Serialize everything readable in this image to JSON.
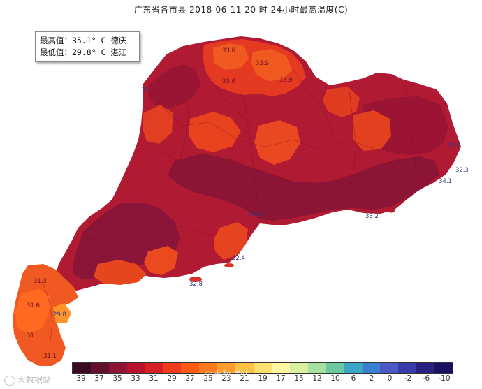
{
  "title": "广东省各市县 2018-06-11 20 时 24小时最高温度(C)",
  "info_box": {
    "max_line": "最高值：35.1° C 德庆",
    "min_line": "最低值：29.8° C 湛江"
  },
  "station_labels": [
    {
      "id": "s1",
      "text": "33.6"
    },
    {
      "id": "s2",
      "text": "33.9"
    },
    {
      "id": "s3",
      "text": "33.6"
    },
    {
      "id": "s4",
      "text": "33.9"
    },
    {
      "id": "s5",
      "text": "33"
    },
    {
      "id": "s6",
      "text": "33.6"
    },
    {
      "id": "s7",
      "text": "34.1"
    },
    {
      "id": "s8",
      "text": "32.3"
    },
    {
      "id": "s9",
      "text": "33.2"
    },
    {
      "id": "s10",
      "text": "32.4"
    },
    {
      "id": "s11",
      "text": "32.8"
    },
    {
      "id": "s12",
      "text": "31.3"
    },
    {
      "id": "s13",
      "text": "31.6"
    },
    {
      "id": "s14",
      "text": "29.8"
    },
    {
      "id": "s15",
      "text": "31"
    },
    {
      "id": "s16",
      "text": "31.1"
    },
    {
      "id": "s17",
      "text": "34.8"
    }
  ],
  "legend": {
    "colors": [
      "#3a0a22",
      "#62102e",
      "#8c1434",
      "#b8132e",
      "#d81f26",
      "#f03a1c",
      "#ff5a14",
      "#ff7a1e",
      "#ff9c2a",
      "#ffbf45",
      "#ffe070",
      "#fff7a0",
      "#d8f0a0",
      "#a8e0a0",
      "#6cc8a0",
      "#3aa8c0",
      "#3a80d0",
      "#4a58c8",
      "#3a3aa8",
      "#2a2080",
      "#1a1060"
    ],
    "labels": [
      "39",
      "37",
      "35",
      "33",
      "31",
      "29",
      "27",
      "25",
      "23",
      "21",
      "19",
      "17",
      "15",
      "12",
      "10",
      "6",
      "2",
      "0",
      "-2",
      "-6",
      "-10"
    ]
  },
  "watermark": {
    "corner": "大数据站",
    "center": "@大数据站"
  }
}
